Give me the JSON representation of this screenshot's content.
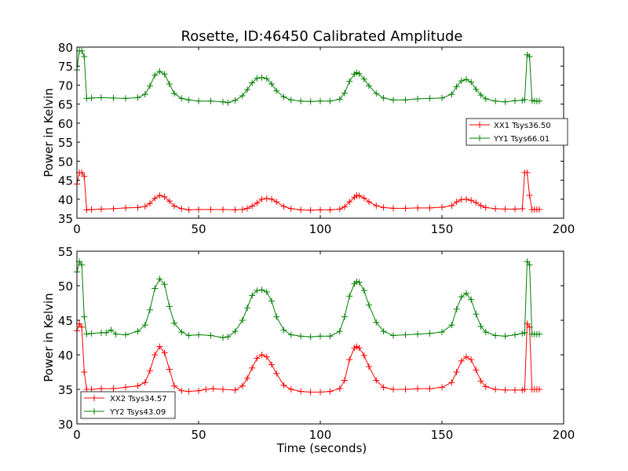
{
  "chart_data": [
    {
      "type": "line",
      "title": "Rosette, ID:46450 Calibrated Amplitude",
      "xlabel": "",
      "ylabel": "Power in Kelvin",
      "xlim": [
        0,
        200
      ],
      "ylim": [
        35,
        80
      ],
      "x_ticks": [
        "0",
        "50",
        "100",
        "150",
        "200"
      ],
      "y_ticks": [
        "35",
        "40",
        "45",
        "50",
        "55",
        "60",
        "65",
        "70",
        "75",
        "80"
      ],
      "grid": false,
      "legend_position": "center-right",
      "series": [
        {
          "name": "XX1 Tsys36.50",
          "color": "#ff0000",
          "x": [
            0,
            1,
            2,
            3,
            4,
            6,
            10,
            15,
            20,
            25,
            28,
            30,
            32,
            34,
            36,
            38,
            40,
            43,
            46,
            50,
            55,
            60,
            65,
            68,
            70,
            72,
            74,
            76,
            78,
            80,
            82,
            85,
            88,
            92,
            96,
            100,
            104,
            108,
            110,
            112,
            114,
            115,
            116,
            118,
            120,
            123,
            126,
            130,
            135,
            140,
            145,
            150,
            154,
            156,
            158,
            160,
            162,
            164,
            166,
            168,
            172,
            176,
            180,
            183,
            184,
            185,
            186,
            187,
            188,
            189,
            190
          ],
          "values": [
            44,
            47,
            47,
            46,
            37.2,
            37.3,
            37.4,
            37.5,
            37.7,
            37.8,
            38.1,
            38.9,
            40.2,
            41,
            40.6,
            39.5,
            38.2,
            37.5,
            37.2,
            37.3,
            37.3,
            37.3,
            37.2,
            37.3,
            37.6,
            38.2,
            39,
            40,
            40.2,
            40,
            39.3,
            38.1,
            37.5,
            37.2,
            37.1,
            37.2,
            37.2,
            37.4,
            38,
            39.3,
            40.5,
            41,
            40.9,
            40.3,
            39.3,
            38.3,
            37.8,
            37.6,
            37.6,
            37.7,
            37.7,
            37.9,
            38.3,
            39.3,
            39.9,
            40,
            39.7,
            39.1,
            38.3,
            37.8,
            37.5,
            37.4,
            37.4,
            37.5,
            47,
            47,
            41,
            37.3,
            37.3,
            37.3,
            37.3
          ]
        },
        {
          "name": "YY1 Tsys66.01",
          "color": "#008000",
          "x": [
            0,
            1,
            2,
            3,
            4,
            6,
            10,
            15,
            20,
            25,
            28,
            30,
            32,
            34,
            36,
            38,
            40,
            43,
            46,
            50,
            55,
            60,
            62,
            65,
            68,
            70,
            72,
            74,
            76,
            78,
            80,
            82,
            85,
            88,
            92,
            96,
            100,
            104,
            108,
            110,
            112,
            114,
            115,
            116,
            118,
            120,
            123,
            126,
            130,
            135,
            140,
            145,
            150,
            154,
            156,
            158,
            160,
            162,
            164,
            166,
            168,
            172,
            176,
            180,
            183,
            184,
            185,
            186,
            187,
            188,
            189,
            190
          ],
          "values": [
            74,
            79,
            79,
            77.5,
            66.5,
            66.6,
            66.7,
            66.6,
            66.5,
            66.7,
            67.6,
            69.8,
            72.6,
            73.6,
            72.9,
            70.3,
            67.8,
            66.5,
            66.1,
            65.8,
            65.8,
            65.6,
            65.4,
            66,
            67.2,
            68.8,
            70.6,
            71.8,
            72,
            71.7,
            70.3,
            68.5,
            66.9,
            66.1,
            65.8,
            65.7,
            65.8,
            65.8,
            66.3,
            67.9,
            71,
            72.9,
            73.3,
            73,
            71.6,
            69.8,
            67.8,
            66.6,
            66.1,
            66.1,
            66.4,
            66.5,
            66.6,
            67.6,
            69.6,
            71.1,
            71.5,
            70.8,
            68.9,
            67.4,
            66.4,
            65.8,
            65.6,
            65.9,
            66,
            66.2,
            78,
            77.5,
            66,
            65.8,
            65.8,
            65.8
          ]
        }
      ]
    },
    {
      "type": "line",
      "title": "",
      "xlabel": "Time (seconds)",
      "ylabel": "Power in Kelvin",
      "xlim": [
        0,
        200
      ],
      "ylim": [
        30,
        55
      ],
      "x_ticks": [
        "0",
        "50",
        "100",
        "150",
        "200"
      ],
      "y_ticks": [
        "30",
        "35",
        "40",
        "45",
        "50",
        "55"
      ],
      "grid": false,
      "legend_position": "bottom-left",
      "series": [
        {
          "name": "XX2 Tsys34.57",
          "color": "#ff0000",
          "x": [
            0,
            1,
            2,
            3,
            4,
            6,
            10,
            15,
            20,
            25,
            28,
            30,
            32,
            34,
            36,
            38,
            40,
            43,
            46,
            50,
            53,
            56,
            60,
            65,
            68,
            70,
            72,
            74,
            76,
            78,
            80,
            82,
            85,
            88,
            92,
            96,
            100,
            104,
            108,
            110,
            112,
            114,
            115,
            116,
            118,
            120,
            123,
            126,
            130,
            135,
            140,
            145,
            150,
            154,
            156,
            158,
            160,
            162,
            164,
            166,
            168,
            172,
            176,
            180,
            183,
            184,
            185,
            186,
            187,
            188,
            189,
            190
          ],
          "values": [
            43.5,
            44.5,
            44,
            37.5,
            35,
            35,
            35.1,
            35.1,
            35.3,
            35.5,
            36,
            37.7,
            40,
            41.2,
            40.3,
            37.9,
            35.5,
            34.8,
            34.7,
            34.8,
            35,
            35.1,
            35,
            34.9,
            35.5,
            36.6,
            38.1,
            39.5,
            40,
            39.7,
            38.6,
            37.3,
            35.6,
            35,
            34.7,
            34.6,
            34.6,
            34.7,
            35.1,
            36.3,
            39.3,
            41,
            41.2,
            41,
            39.9,
            38.3,
            36.3,
            35.3,
            35,
            35,
            35.1,
            35.1,
            35.3,
            36,
            37.5,
            39.1,
            39.7,
            39.3,
            37.8,
            36.2,
            35.4,
            35,
            34.9,
            34.9,
            34.9,
            35,
            44.5,
            44,
            35,
            35,
            35,
            35
          ]
        },
        {
          "name": "YY2 Tsys43.09",
          "color": "#008000",
          "x": [
            0,
            1,
            2,
            3,
            4,
            6,
            10,
            12,
            14,
            16,
            20,
            25,
            28,
            30,
            32,
            34,
            36,
            38,
            40,
            43,
            46,
            50,
            55,
            60,
            62,
            65,
            68,
            70,
            72,
            74,
            76,
            78,
            80,
            82,
            85,
            88,
            92,
            96,
            100,
            104,
            108,
            110,
            112,
            114,
            115,
            116,
            118,
            120,
            123,
            126,
            130,
            135,
            140,
            145,
            150,
            154,
            156,
            158,
            160,
            162,
            164,
            166,
            168,
            172,
            176,
            180,
            183,
            184,
            185,
            186,
            187,
            188,
            189,
            190
          ],
          "values": [
            52,
            53.5,
            53,
            45.5,
            43,
            43.1,
            43.2,
            43.2,
            43.6,
            43,
            42.9,
            43.4,
            44.3,
            46.5,
            49.6,
            51,
            50.2,
            47,
            44.6,
            43.3,
            42.8,
            42.9,
            42.8,
            42.5,
            42.6,
            43.4,
            45,
            46.8,
            48.6,
            49.3,
            49.4,
            49.1,
            47.8,
            45.5,
            43.6,
            42.9,
            42.7,
            42.6,
            42.7,
            42.7,
            43.4,
            45.5,
            48.5,
            50.3,
            50.6,
            50.5,
            49.3,
            47.2,
            44.7,
            43.4,
            42.8,
            42.9,
            43,
            43.1,
            43.3,
            44.3,
            46.6,
            48.4,
            48.9,
            48,
            45.9,
            44.1,
            43.3,
            42.8,
            42.7,
            42.9,
            43.1,
            43.2,
            53.5,
            53,
            43,
            43,
            43,
            43
          ]
        }
      ]
    }
  ]
}
